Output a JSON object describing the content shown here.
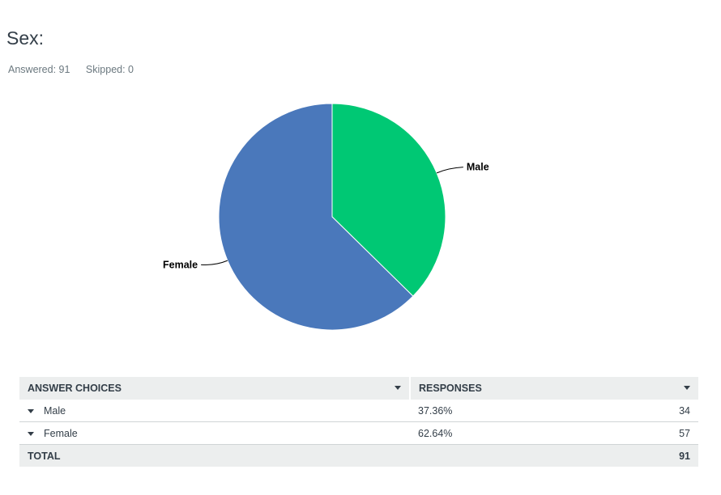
{
  "question": {
    "title": "Sex:",
    "answered": "Answered: 91",
    "skipped": "Skipped: 0"
  },
  "colors": {
    "male": "#00c874",
    "female": "#4a78bb",
    "header_bg": "#eceeee"
  },
  "chart_data": {
    "type": "pie",
    "title": "",
    "categories": [
      "Male",
      "Female"
    ],
    "values": [
      37.36,
      62.64
    ],
    "legend": "none",
    "labels": [
      "Male",
      "Female"
    ]
  },
  "table": {
    "headers": {
      "choices": "ANSWER CHOICES",
      "responses": "RESPONSES"
    },
    "rows": [
      {
        "choice": "Male",
        "percent": "37.36%",
        "count": "34"
      },
      {
        "choice": "Female",
        "percent": "62.64%",
        "count": "57"
      }
    ],
    "total": {
      "label": "TOTAL",
      "count": "91"
    }
  }
}
